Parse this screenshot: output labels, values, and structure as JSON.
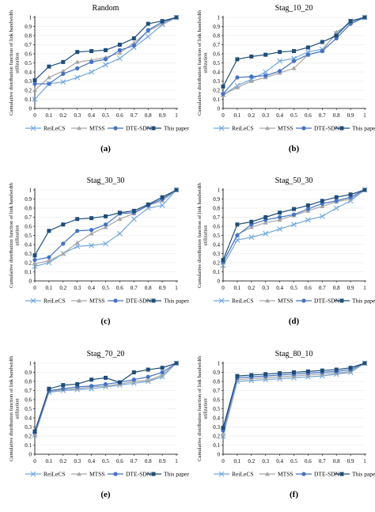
{
  "figure": {
    "ylabel_line1": "Cumulative distribution function of link bandwidth",
    "ylabel_line2": "utilization",
    "x_ticks": [
      "0",
      "0.1",
      "0.2",
      "0.3",
      "0.4",
      "0.5",
      "0.6",
      "0.7",
      "0.8",
      "0.9",
      "1"
    ],
    "y_ticks": [
      "0",
      "0.1",
      "0.2",
      "0.3",
      "0.4",
      "0.5",
      "0.6",
      "0.7",
      "0.8",
      "0.9",
      "1"
    ]
  },
  "colors": {
    "ReiLeCS": "#6fa8dc",
    "MTSS": "#a6a6a6",
    "DTE-SDN": "#4472c4",
    "This paper": "#1f4e79",
    "axis": "#000000",
    "grid": "#e6e6e6"
  },
  "legend": [
    {
      "name": "ReiLeCS",
      "marker": "x-marker-icon"
    },
    {
      "name": "MTSS",
      "marker": "triangle-marker-icon"
    },
    {
      "name": "DTE-SDN",
      "marker": "circle-marker-icon"
    },
    {
      "name": "This paper",
      "marker": "square-marker-icon"
    }
  ],
  "chart_data": [
    {
      "type": "line",
      "title": "Random",
      "label": "(a)",
      "x": [
        0,
        0.1,
        0.2,
        0.3,
        0.4,
        0.5,
        0.6,
        0.7,
        0.8,
        0.9,
        1
      ],
      "ylim": [
        0,
        1
      ],
      "series": [
        {
          "name": "ReiLeCS",
          "values": [
            0.1,
            0.27,
            0.29,
            0.34,
            0.4,
            0.48,
            0.55,
            0.67,
            0.79,
            0.92,
            1.0
          ]
        },
        {
          "name": "MTSS",
          "values": [
            0.2,
            0.34,
            0.41,
            0.51,
            0.53,
            0.56,
            0.61,
            0.72,
            0.85,
            0.93,
            1.0
          ]
        },
        {
          "name": "DTE-SDN",
          "values": [
            0.27,
            0.27,
            0.38,
            0.44,
            0.51,
            0.54,
            0.64,
            0.69,
            0.86,
            0.95,
            1.0
          ]
        },
        {
          "name": "This paper",
          "values": [
            0.31,
            0.46,
            0.51,
            0.62,
            0.63,
            0.64,
            0.7,
            0.77,
            0.93,
            0.96,
            1.0
          ]
        }
      ]
    },
    {
      "type": "line",
      "title": "Stag_10_20",
      "label": "(b)",
      "x": [
        0,
        0.1,
        0.2,
        0.3,
        0.4,
        0.5,
        0.6,
        0.7,
        0.8,
        0.9,
        1
      ],
      "ylim": [
        0,
        1
      ],
      "series": [
        {
          "name": "ReiLeCS",
          "values": [
            0.15,
            0.25,
            0.32,
            0.4,
            0.52,
            0.55,
            0.62,
            0.65,
            0.82,
            0.96,
            1.0
          ]
        },
        {
          "name": "MTSS",
          "values": [
            0.15,
            0.23,
            0.3,
            0.34,
            0.39,
            0.44,
            0.59,
            0.63,
            0.84,
            0.94,
            1.0
          ]
        },
        {
          "name": "DTE-SDN",
          "values": [
            0.16,
            0.34,
            0.35,
            0.36,
            0.41,
            0.52,
            0.59,
            0.63,
            0.77,
            0.93,
            1.0
          ]
        },
        {
          "name": "This paper",
          "values": [
            0.24,
            0.54,
            0.57,
            0.59,
            0.62,
            0.63,
            0.67,
            0.73,
            0.8,
            0.96,
            1.0
          ]
        }
      ]
    },
    {
      "type": "line",
      "title": "Stag_30_30",
      "label": "(c)",
      "x": [
        0,
        0.1,
        0.2,
        0.3,
        0.4,
        0.5,
        0.6,
        0.7,
        0.8,
        0.9,
        1
      ],
      "ylim": [
        0,
        1
      ],
      "series": [
        {
          "name": "ReiLeCS",
          "values": [
            0.16,
            0.2,
            0.3,
            0.38,
            0.39,
            0.41,
            0.52,
            0.68,
            0.8,
            0.83,
            1.0
          ]
        },
        {
          "name": "MTSS",
          "values": [
            0.19,
            0.22,
            0.3,
            0.42,
            0.52,
            0.59,
            0.68,
            0.74,
            0.83,
            0.88,
            1.0
          ]
        },
        {
          "name": "DTE-SDN",
          "values": [
            0.23,
            0.26,
            0.41,
            0.55,
            0.56,
            0.62,
            0.74,
            0.75,
            0.83,
            0.9,
            1.0
          ]
        },
        {
          "name": "This paper",
          "values": [
            0.28,
            0.55,
            0.62,
            0.68,
            0.69,
            0.71,
            0.75,
            0.77,
            0.84,
            0.92,
            1.0
          ]
        }
      ]
    },
    {
      "type": "line",
      "title": "Stag_50_30",
      "label": "(d)",
      "x": [
        0,
        0.1,
        0.2,
        0.3,
        0.4,
        0.5,
        0.6,
        0.7,
        0.8,
        0.9,
        1
      ],
      "ylim": [
        0,
        1
      ],
      "series": [
        {
          "name": "ReiLeCS",
          "values": [
            0.17,
            0.45,
            0.48,
            0.52,
            0.57,
            0.62,
            0.67,
            0.71,
            0.8,
            0.88,
            1.0
          ]
        },
        {
          "name": "MTSS",
          "values": [
            0.2,
            0.51,
            0.59,
            0.64,
            0.67,
            0.72,
            0.77,
            0.82,
            0.87,
            0.9,
            1.0
          ]
        },
        {
          "name": "DTE-SDN",
          "values": [
            0.21,
            0.5,
            0.62,
            0.67,
            0.7,
            0.73,
            0.79,
            0.85,
            0.88,
            0.92,
            1.0
          ]
        },
        {
          "name": "This paper",
          "values": [
            0.23,
            0.62,
            0.65,
            0.7,
            0.75,
            0.79,
            0.83,
            0.88,
            0.92,
            0.95,
            1.0
          ]
        }
      ]
    },
    {
      "type": "line",
      "title": "Stag_70_20",
      "label": "(e)",
      "x": [
        0,
        0.1,
        0.2,
        0.3,
        0.4,
        0.5,
        0.6,
        0.7,
        0.8,
        0.9,
        1
      ],
      "ylim": [
        0,
        1
      ],
      "series": [
        {
          "name": "ReiLeCS",
          "values": [
            0.21,
            0.68,
            0.7,
            0.71,
            0.72,
            0.74,
            0.76,
            0.78,
            0.8,
            0.85,
            1.0
          ]
        },
        {
          "name": "MTSS",
          "values": [
            0.22,
            0.69,
            0.71,
            0.72,
            0.74,
            0.75,
            0.77,
            0.8,
            0.81,
            0.87,
            1.0
          ]
        },
        {
          "name": "DTE-SDN",
          "values": [
            0.24,
            0.7,
            0.72,
            0.74,
            0.75,
            0.77,
            0.79,
            0.82,
            0.85,
            0.9,
            1.0
          ]
        },
        {
          "name": "This paper",
          "values": [
            0.25,
            0.72,
            0.76,
            0.77,
            0.82,
            0.84,
            0.79,
            0.9,
            0.93,
            0.95,
            1.0
          ]
        }
      ]
    },
    {
      "type": "line",
      "title": "Stag_80_10",
      "label": "(f)",
      "x": [
        0,
        0.1,
        0.2,
        0.3,
        0.4,
        0.5,
        0.6,
        0.7,
        0.8,
        0.9,
        1
      ],
      "ylim": [
        0,
        1
      ],
      "series": [
        {
          "name": "ReiLeCS",
          "values": [
            0.2,
            0.8,
            0.81,
            0.82,
            0.83,
            0.84,
            0.85,
            0.86,
            0.88,
            0.9,
            1.0
          ]
        },
        {
          "name": "MTSS",
          "values": [
            0.22,
            0.82,
            0.83,
            0.84,
            0.85,
            0.86,
            0.87,
            0.88,
            0.89,
            0.91,
            1.0
          ]
        },
        {
          "name": "DTE-SDN",
          "values": [
            0.26,
            0.84,
            0.85,
            0.86,
            0.87,
            0.88,
            0.89,
            0.9,
            0.91,
            0.93,
            1.0
          ]
        },
        {
          "name": "This paper",
          "values": [
            0.29,
            0.86,
            0.87,
            0.88,
            0.89,
            0.9,
            0.91,
            0.92,
            0.93,
            0.95,
            1.0
          ]
        }
      ]
    }
  ]
}
